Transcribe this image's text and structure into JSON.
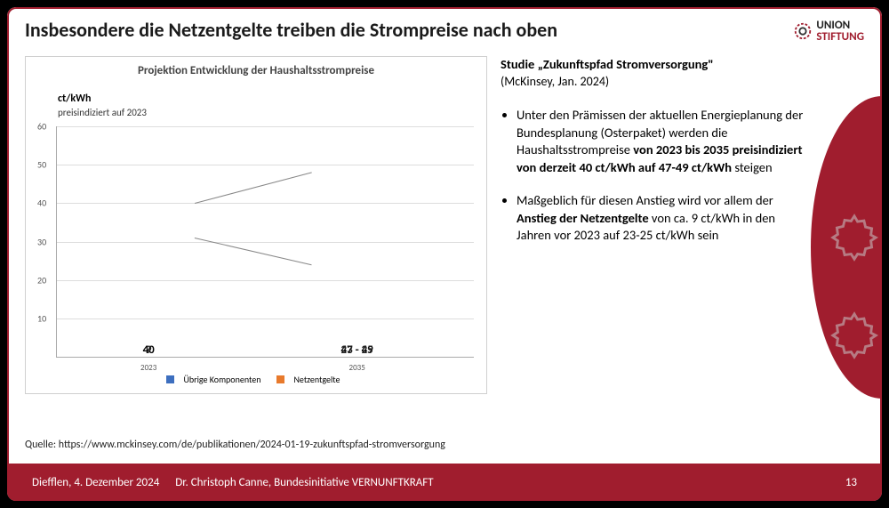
{
  "header": {
    "title": "Insbesondere die Netzentgelte treiben die Strompreise nach oben"
  },
  "logo": {
    "line1": "UNION",
    "line2": "STIFTUNG"
  },
  "chart": {
    "type": "stacked-bar",
    "title": "Projektion Entwicklung der Haushaltsstrompreise",
    "ylabel_unit": "ct/kWh",
    "ylabel_note": "preisindiziert auf 2023",
    "ylim": [
      0,
      60
    ],
    "yticks": [
      0,
      10,
      20,
      30,
      40,
      50,
      60
    ],
    "ytick_labels": [
      "",
      "10",
      "20",
      "30",
      "40",
      "50",
      "60"
    ],
    "categories": [
      "2023",
      "2035"
    ],
    "series": [
      {
        "name": "Übrige Komponenten",
        "color": "#3d6fbf",
        "values": [
          31,
          24
        ]
      },
      {
        "name": "Netzentgelte",
        "color": "#e87a2c",
        "values": [
          9,
          24
        ]
      }
    ],
    "bar_totals": [
      "40",
      "47 - 49"
    ],
    "orange_labels": [
      "9",
      "23 - 25"
    ],
    "bar_width_pct": 22,
    "bar_positions_pct": [
      22,
      72
    ],
    "background_color": "#ffffff",
    "grid_color": "#dddddd",
    "axis_color": "#aaaaaa",
    "title_fontsize": 13,
    "label_fontsize": 13
  },
  "text": {
    "study_title": "Studie „Zukunftspfad Stromversorgung\"",
    "study_sub": "(McKinsey, Jan. 2024)",
    "bullet1_pre": "Unter den Prämissen der aktuellen Energieplanung der Bundesplanung (Osterpaket) werden die Haushaltsstrompreise ",
    "bullet1_bold": "von 2023 bis 2035 preisindiziert von derzeit 40 ct/kWh auf 47-49 ct/kWh",
    "bullet1_post": " steigen",
    "bullet2_pre": "Maßgeblich für diesen Anstieg wird vor allem der ",
    "bullet2_bold": "Anstieg der Netzentgelte",
    "bullet2_post": " von ca. 9 ct/kWh in den Jahren vor 2023 auf 23-25 ct/kWh sein"
  },
  "source": "Quelle: https://www.mckinsey.com/de/publikationen/2024-01-19-zukunftspfad-stromversorgung",
  "footer": {
    "location": "Diefflen, 4. Dezember 2024",
    "author": "Dr. Christoph Canne, Bundesinitiative VERNUNFTKRAFT",
    "page": "13"
  },
  "colors": {
    "brand_red": "#a01d2e",
    "text_dark": "#1a1a1a"
  }
}
